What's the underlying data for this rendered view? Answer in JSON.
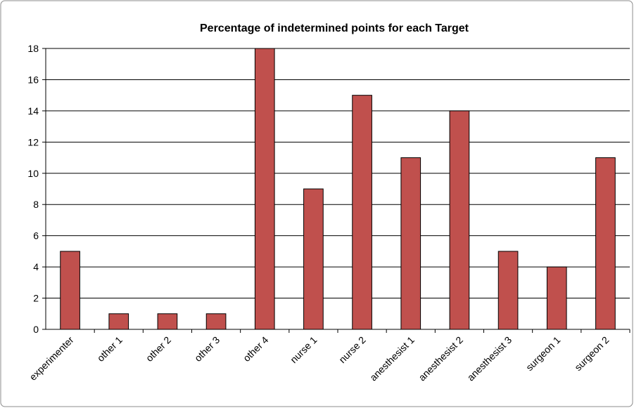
{
  "chart_data": {
    "type": "bar",
    "title": "Percentage of indetermined points for each Target",
    "categories": [
      "experimenter",
      "other 1",
      "other 2",
      "other 3",
      "other 4",
      "nurse 1",
      "nurse 2",
      "anesthesist 1",
      "anesthesist 2",
      "anesthesist 3",
      "surgeon 1",
      "surgeon 2"
    ],
    "values": [
      5,
      1,
      1,
      1,
      18,
      9,
      15,
      11,
      14,
      5,
      4,
      11
    ],
    "color": "#c0504d",
    "ylim": [
      0,
      18
    ],
    "yticks": [
      0,
      2,
      4,
      6,
      8,
      10,
      12,
      14,
      16,
      18
    ],
    "grid": true
  }
}
